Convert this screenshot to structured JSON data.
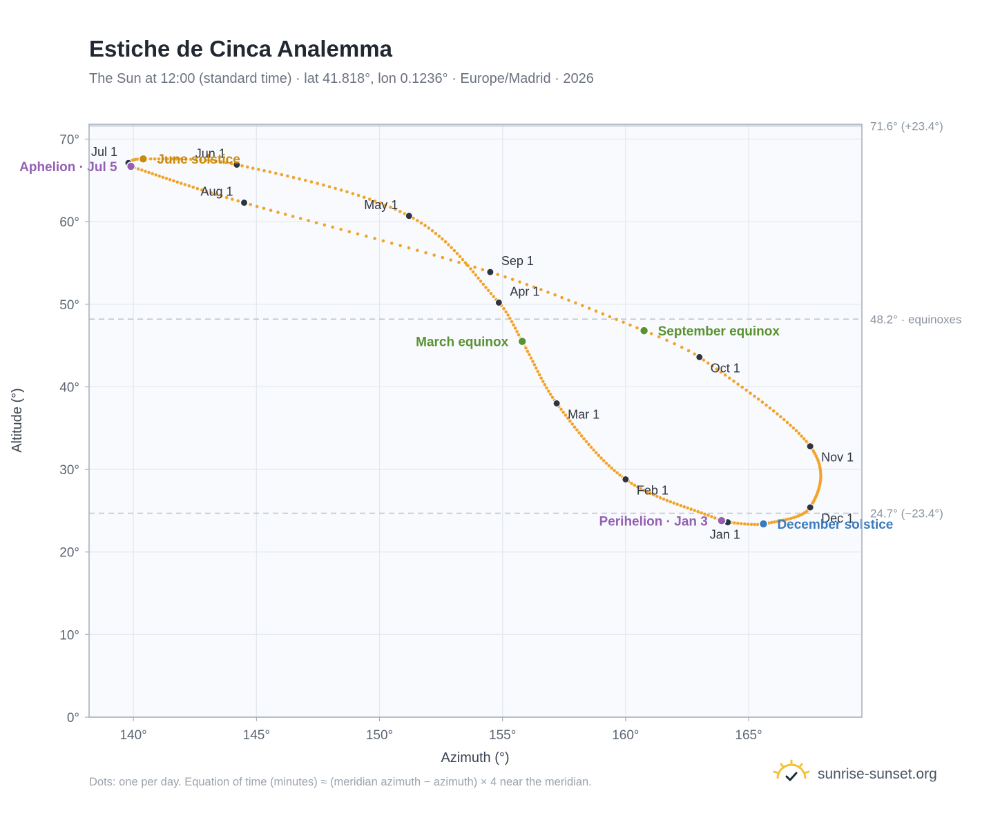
{
  "title": "Estiche de Cinca Analemma",
  "subtitle": "The Sun at 12:00 (standard time) · lat 41.818°, lon 0.1236° · Europe/Madrid · 2026",
  "footnote": "Dots: one per day. Equation of time (minutes) ≈ (meridian azimuth − azimuth) × 4 near the meridian.",
  "brand": {
    "text": "sunrise-sunset.org",
    "icon": "sun-logo-icon"
  },
  "colors": {
    "curve": "#f2a42a",
    "month_dot": "#2f3540",
    "equinox": "#5a9232",
    "june_solstice": "#c88a12",
    "december_solstice": "#3a7cc0",
    "apsis": "#9460b4",
    "plot_bg": "#f8fafd",
    "grid": "#e3e7ee",
    "reference_line": "#b9c2cd"
  },
  "chart_data": {
    "type": "scatter",
    "title": "Estiche de Cinca Analemma",
    "xlabel": "Azimuth (°)",
    "ylabel": "Altitude (°)",
    "xlim": [
      138.2,
      169.6
    ],
    "ylim": [
      0,
      71.8
    ],
    "x_ticks": [
      "140°",
      "145°",
      "150°",
      "155°",
      "160°",
      "165°"
    ],
    "x_tick_values": [
      140,
      145,
      150,
      155,
      160,
      165
    ],
    "y_ticks": [
      "0°",
      "10°",
      "20°",
      "30°",
      "40°",
      "50°",
      "60°",
      "70°"
    ],
    "y_tick_values": [
      0,
      10,
      20,
      30,
      40,
      50,
      60,
      70
    ],
    "grid": true,
    "series": [
      {
        "points": [
          {
            "date": "Jan 1",
            "az": 164.15,
            "alt": 23.6
          },
          {
            "date": "Jan 3",
            "az": 163.9,
            "alt": 23.8
          },
          {
            "date": "Feb 1",
            "az": 160.0,
            "alt": 28.8
          },
          {
            "date": "Mar 1",
            "az": 157.2,
            "alt": 38.0
          },
          {
            "date": "Mar 20",
            "az": 155.8,
            "alt": 45.5
          },
          {
            "date": "Apr 1",
            "az": 154.85,
            "alt": 50.2
          },
          {
            "date": "May 1",
            "az": 151.2,
            "alt": 60.7
          },
          {
            "date": "Jun 1",
            "az": 144.2,
            "alt": 66.9
          },
          {
            "date": "Jun 21",
            "az": 140.4,
            "alt": 67.6
          },
          {
            "date": "Jul 1",
            "az": 139.8,
            "alt": 67.1
          },
          {
            "date": "Jul 5",
            "az": 139.9,
            "alt": 66.7
          },
          {
            "date": "Aug 1",
            "az": 144.5,
            "alt": 62.3
          },
          {
            "date": "Sep 1",
            "az": 154.5,
            "alt": 53.9
          },
          {
            "date": "Sep 23",
            "az": 160.75,
            "alt": 46.8
          },
          {
            "date": "Oct 1",
            "az": 163.0,
            "alt": 43.6
          },
          {
            "date": "Nov 1",
            "az": 167.5,
            "alt": 32.8
          },
          {
            "date": "Dec 1",
            "az": 167.5,
            "alt": 25.4
          },
          {
            "date": "Dec 21",
            "az": 165.6,
            "alt": 23.4
          }
        ]
      }
    ],
    "month_markers": [
      {
        "label": "Jan 1",
        "az": 164.15,
        "alt": 23.6,
        "label_pos": "below"
      },
      {
        "label": "Feb 1",
        "az": 160.0,
        "alt": 28.8,
        "label_pos": "below-right"
      },
      {
        "label": "Mar 1",
        "az": 157.2,
        "alt": 38.0,
        "label_pos": "below-right"
      },
      {
        "label": "Apr 1",
        "az": 154.85,
        "alt": 50.2,
        "label_pos": "above-right"
      },
      {
        "label": "May 1",
        "az": 151.2,
        "alt": 60.7,
        "label_pos": "above-left"
      },
      {
        "label": "Jun 1",
        "az": 144.2,
        "alt": 66.9,
        "label_pos": "above-left"
      },
      {
        "label": "Jul 1",
        "az": 139.8,
        "alt": 67.1,
        "label_pos": "above-left"
      },
      {
        "label": "Aug 1",
        "az": 144.5,
        "alt": 62.3,
        "label_pos": "above-left"
      },
      {
        "label": "Sep 1",
        "az": 154.5,
        "alt": 53.9,
        "label_pos": "above-right"
      },
      {
        "label": "Oct 1",
        "az": 163.0,
        "alt": 43.6,
        "label_pos": "below-right"
      },
      {
        "label": "Nov 1",
        "az": 167.5,
        "alt": 32.8,
        "label_pos": "below-right"
      },
      {
        "label": "Dec 1",
        "az": 167.5,
        "alt": 25.4,
        "label_pos": "below-right"
      }
    ],
    "events": [
      {
        "label": "June solstice",
        "az": 140.4,
        "alt": 67.6,
        "color_key": "june_solstice",
        "label_side": "right"
      },
      {
        "label": "December solstice",
        "az": 165.6,
        "alt": 23.4,
        "color_key": "december_solstice",
        "label_side": "right"
      },
      {
        "label": "March equinox",
        "az": 155.8,
        "alt": 45.5,
        "color_key": "equinox",
        "label_side": "left"
      },
      {
        "label": "September equinox",
        "az": 160.75,
        "alt": 46.8,
        "color_key": "equinox",
        "label_side": "right"
      },
      {
        "label": "Aphelion · Jul 5",
        "az": 139.9,
        "alt": 66.7,
        "color_key": "apsis",
        "label_side": "left"
      },
      {
        "label": "Perihelion · Jan 3",
        "az": 163.9,
        "alt": 23.8,
        "color_key": "apsis",
        "label_side": "left"
      }
    ],
    "reference_lines": [
      {
        "alt": 71.6,
        "label": "71.6° (+23.4°)",
        "style": "solid"
      },
      {
        "alt": 48.2,
        "label": "48.2° · equinoxes",
        "style": "dashed"
      },
      {
        "alt": 24.7,
        "label": "24.7° (−23.4°)",
        "style": "dashed"
      }
    ]
  }
}
